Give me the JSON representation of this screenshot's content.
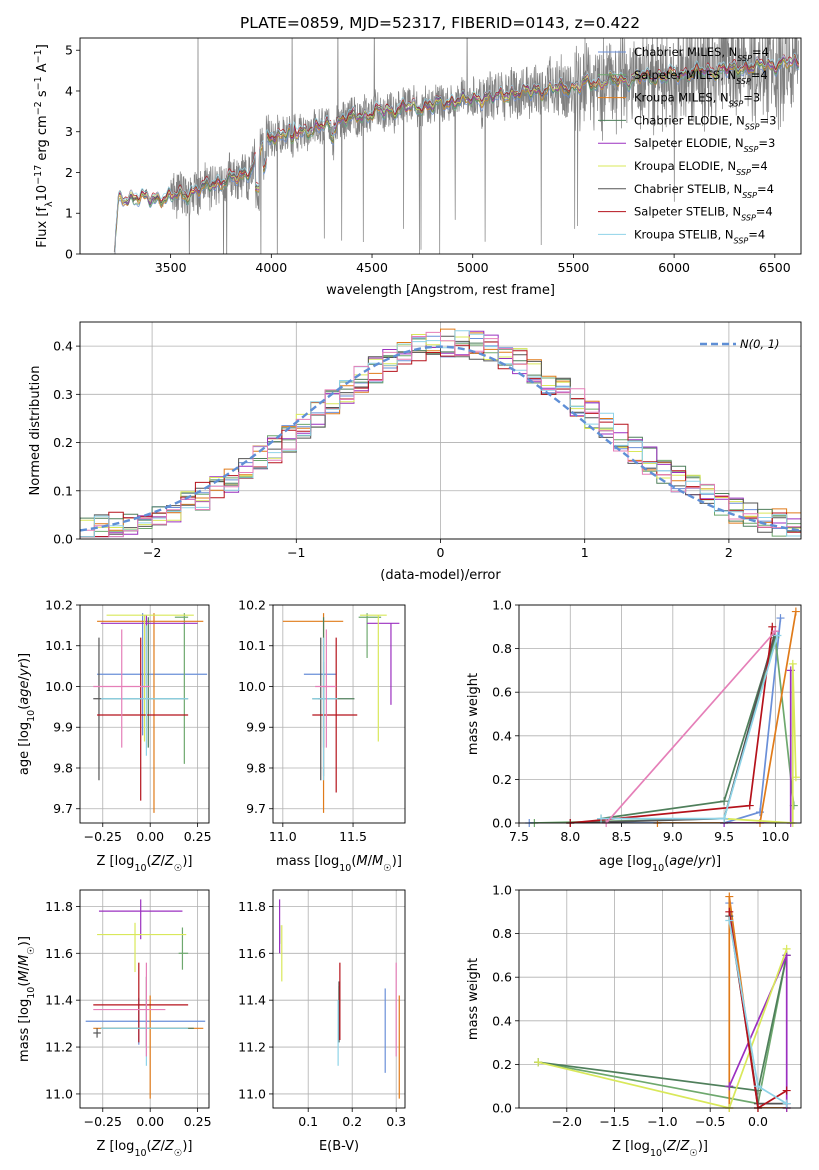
{
  "title": "PLATE=0859, MJD=52317, FIBERID=0143, z=0.422",
  "colors": {
    "Chabrier MILES": "#6a8fd8",
    "Salpeter MILES": "#6ea86e",
    "Kroupa MILES": "#e07b1a",
    "Chabrier ELODIE": "#4f7f5b",
    "Salpeter ELODIE": "#9b30c0",
    "Kroupa ELODIE": "#d9e85a",
    "Chabrier STELIB": "#555555",
    "Salpeter STELIB": "#b5121b",
    "Kroupa STELIB": "#8fd3e8",
    "pink": "#e57fb8",
    "lime": "#c8ee66",
    "data": "#808080"
  },
  "chart_data": [
    {
      "id": "spectrum",
      "type": "line",
      "title": "PLATE=0859, MJD=52317, FIBERID=0143, z=0.422",
      "xlabel": "wavelength [Angstrom, rest frame]",
      "ylabel": "Flux [f_λ 10^-17 erg cm^-2 s^-1 A^-1]",
      "xlim": [
        3050,
        6630
      ],
      "ylim": [
        0,
        5.3
      ],
      "xticks": [
        "3500",
        "4000",
        "4500",
        "5000",
        "5500",
        "6000",
        "6500"
      ],
      "yticks": [
        "0",
        "1",
        "2",
        "3",
        "4",
        "5"
      ],
      "grid": false,
      "legend": "top-right",
      "legend_entries": [
        "Chabrier MILES, N_SSP=4",
        "Salpeter MILES, N_SSP=4",
        "Kroupa MILES, N_SSP=3",
        "Chabrier ELODIE, N_SSP=3",
        "Salpeter ELODIE, N_SSP=3",
        "Kroupa ELODIE, N_SSP=4",
        "Chabrier STELIB, N_SSP=4",
        "Salpeter STELIB, N_SSP=4",
        "Kroupa STELIB, N_SSP=4"
      ],
      "model_continuum": {
        "x": [
          3220,
          3240,
          3300,
          3400,
          3500,
          3600,
          3700,
          3800,
          3850,
          3900,
          3950,
          4000,
          4100,
          4200,
          4300,
          4400,
          4500,
          4600,
          4700,
          4800,
          4900,
          5000,
          5100,
          5200,
          5300,
          5400,
          5500,
          5600,
          5700,
          5800,
          5900,
          6000,
          6100,
          6200,
          6300,
          6400,
          6500,
          6600
        ],
        "y": [
          0,
          1.3,
          1.4,
          1.35,
          1.4,
          1.5,
          1.7,
          1.85,
          1.9,
          2.1,
          2.6,
          2.9,
          3.0,
          3.05,
          3.2,
          3.35,
          3.45,
          3.55,
          3.6,
          3.65,
          3.75,
          3.8,
          3.85,
          3.95,
          4.0,
          4.05,
          4.1,
          4.2,
          4.25,
          4.3,
          4.35,
          4.4,
          4.45,
          4.5,
          4.55,
          4.6,
          4.65,
          4.7
        ]
      }
    },
    {
      "id": "residuals",
      "type": "histogram",
      "xlabel": "(data-model)/error",
      "ylabel": "Normed distribution",
      "xlim": [
        -2.5,
        2.5
      ],
      "ylim": [
        0,
        0.45
      ],
      "xticks": [
        "−2",
        "−1",
        "0",
        "1",
        "2"
      ],
      "yticks": [
        "0.0",
        "0.1",
        "0.2",
        "0.3",
        "0.4"
      ],
      "grid": true,
      "legend": "top-right",
      "legend_entries": [
        "N(0, 1)"
      ],
      "bin_width": 0.1
    },
    {
      "id": "age-Z",
      "type": "errorbar",
      "xlabel": "Z [log10(Z/Z☉)]",
      "ylabel": "age [log10(age/yr)]",
      "xlim": [
        -0.37,
        0.31
      ],
      "ylim": [
        9.665,
        10.2
      ],
      "xticks": [
        "−0.25",
        "0.00",
        "0.25"
      ],
      "yticks": [
        "9.7",
        "9.8",
        "9.9",
        "10.0",
        "10.1",
        "10.2"
      ],
      "grid": true,
      "points": [
        {
          "model": "Chabrier MILES",
          "x": -0.04,
          "xerr": [
            0.24,
            0.34
          ],
          "y": 10.03,
          "yerr": [
            0.15,
            0.15
          ]
        },
        {
          "model": "Salpeter MILES",
          "x": 0.18,
          "xerr": [
            0.05,
            0.02
          ],
          "y": 10.17,
          "yerr": [
            0.36,
            0.01
          ]
        },
        {
          "model": "Kroupa MILES",
          "x": 0.02,
          "xerr": [
            0.3,
            0.26
          ],
          "y": 10.16,
          "yerr": [
            0.47,
            0.02
          ]
        },
        {
          "model": "Chabrier ELODIE",
          "x": -0.01,
          "xerr": [
            0.23,
            0.21
          ],
          "y": 9.97,
          "yerr": [
            0.12,
            0.2
          ]
        },
        {
          "model": "Salpeter ELODIE",
          "x": -0.02,
          "xerr": [
            0.24,
            0.27
          ],
          "y": 10.155,
          "yerr": [
            0.15,
            0.02
          ]
        },
        {
          "model": "Kroupa ELODIE",
          "x": -0.03,
          "xerr": [
            0.2,
            0.26
          ],
          "y": 10.175,
          "yerr": [
            0.31,
            0.0
          ]
        },
        {
          "model": "Chabrier STELIB",
          "x": -0.27,
          "xerr": [
            0.03,
            0.03
          ],
          "y": 9.97,
          "yerr": [
            0.2,
            0.15
          ]
        },
        {
          "model": "Salpeter STELIB",
          "x": -0.05,
          "xerr": [
            0.23,
            0.25
          ],
          "y": 9.93,
          "yerr": [
            0.21,
            0.19
          ]
        },
        {
          "model": "Kroupa STELIB",
          "x": -0.02,
          "xerr": [
            0.24,
            0.22
          ],
          "y": 9.97,
          "yerr": [
            0.14,
            0.18
          ]
        },
        {
          "model": "pink",
          "x": -0.15,
          "xerr": [
            0.15,
            0.15
          ],
          "y": 10.0,
          "yerr": [
            0.15,
            0.14
          ]
        }
      ]
    },
    {
      "id": "age-mass",
      "type": "errorbar",
      "xlabel": "mass [log10(M/M☉)]",
      "ylabel": "",
      "xlim": [
        10.93,
        11.87
      ],
      "ylim": [
        9.665,
        10.2
      ],
      "xticks": [
        "11.0",
        "11.5"
      ],
      "yticks": [
        "9.7",
        "9.8",
        "9.9",
        "10.0",
        "10.1",
        "10.2"
      ],
      "grid": true,
      "points": [
        {
          "model": "Chabrier MILES",
          "x": 11.29,
          "xerr": [
            0.14,
            0.09
          ],
          "y": 10.03,
          "yerr": [
            0.25,
            0.03
          ]
        },
        {
          "model": "Salpeter MILES",
          "x": 11.6,
          "xerr": [
            0.06,
            0.1
          ],
          "y": 10.17,
          "yerr": [
            0.1,
            0.01
          ]
        },
        {
          "model": "Kroupa MILES",
          "x": 11.29,
          "xerr": [
            0.29,
            0.14
          ],
          "y": 10.16,
          "yerr": [
            0.47,
            0.02
          ]
        },
        {
          "model": "Chabrier ELODIE",
          "x": 11.29,
          "xerr": [
            0.08,
            0.22
          ],
          "y": 9.97,
          "yerr": [
            0.12,
            0.2
          ]
        },
        {
          "model": "Salpeter ELODIE",
          "x": 11.77,
          "xerr": [
            0.17,
            0.06
          ],
          "y": 10.155,
          "yerr": [
            0.2,
            0.0
          ]
        },
        {
          "model": "Kroupa ELODIE",
          "x": 11.68,
          "xerr": [
            0.13,
            0.06
          ],
          "y": 10.175,
          "yerr": [
            0.31,
            0.0
          ]
        },
        {
          "model": "Chabrier STELIB",
          "x": 11.27,
          "xerr": [
            0.02,
            0.02
          ],
          "y": 9.97,
          "yerr": [
            0.2,
            0.15
          ]
        },
        {
          "model": "Salpeter STELIB",
          "x": 11.38,
          "xerr": [
            0.17,
            0.15
          ],
          "y": 9.93,
          "yerr": [
            0.19,
            0.19
          ]
        },
        {
          "model": "Kroupa STELIB",
          "x": 11.29,
          "xerr": [
            0.08,
            0.1
          ],
          "y": 9.97,
          "yerr": [
            0.2,
            0.15
          ]
        },
        {
          "model": "pink",
          "x": 11.31,
          "xerr": [
            0.08,
            0.07
          ],
          "y": 10.0,
          "yerr": [
            0.15,
            0.14
          ]
        }
      ]
    },
    {
      "id": "massweight-age",
      "type": "line",
      "xlabel": "age [log10(age/yr)]",
      "ylabel": "mass weight",
      "xlim": [
        7.5,
        10.25
      ],
      "ylim": [
        0,
        1
      ],
      "xticks": [
        "7.5",
        "8.0",
        "8.5",
        "9.0",
        "9.5",
        "10.0"
      ],
      "yticks": [
        "0.0",
        "0.2",
        "0.4",
        "0.6",
        "0.8",
        "1.0"
      ],
      "grid": true,
      "series": [
        {
          "model": "Chabrier MILES",
          "x": [
            7.6,
            9.5,
            9.85,
            10.05
          ],
          "y": [
            0.0,
            0.0,
            0.05,
            0.94
          ]
        },
        {
          "model": "Salpeter MILES",
          "x": [
            7.65,
            9.5,
            10.0,
            10.18
          ],
          "y": [
            0.0,
            0.02,
            0.85,
            0.08
          ]
        },
        {
          "model": "Kroupa MILES",
          "x": [
            8.85,
            9.85,
            10.2
          ],
          "y": [
            0.0,
            0.0,
            0.97
          ]
        },
        {
          "model": "Chabrier ELODIE",
          "x": [
            8.3,
            9.5,
            10.0
          ],
          "y": [
            0.02,
            0.1,
            0.86
          ]
        },
        {
          "model": "Salpeter ELODIE",
          "x": [
            9.5,
            10.15,
            10.15
          ],
          "y": [
            0.0,
            0.0,
            0.7
          ]
        },
        {
          "model": "Kroupa ELODIE",
          "x": [
            9.5,
            10.17,
            10.17,
            10.2
          ],
          "y": [
            0.02,
            0.0,
            0.73,
            0.21
          ]
        },
        {
          "model": "Chabrier STELIB",
          "x": [
            8.0,
            9.5,
            10.0
          ],
          "y": [
            0.0,
            0.02,
            0.88
          ]
        },
        {
          "model": "Salpeter STELIB",
          "x": [
            8.0,
            9.75,
            9.97
          ],
          "y": [
            0.0,
            0.08,
            0.9
          ]
        },
        {
          "model": "Kroupa STELIB",
          "x": [
            8.3,
            9.5,
            10.02
          ],
          "y": [
            0.02,
            0.02,
            0.86
          ]
        },
        {
          "model": "pink",
          "x": [
            8.35,
            10.0
          ],
          "y": [
            0.0,
            0.88
          ]
        }
      ]
    },
    {
      "id": "mass-Z",
      "type": "errorbar",
      "xlabel": "Z [log10(Z/Z☉)]",
      "ylabel": "mass [log10(M/M☉)]",
      "xlim": [
        -0.37,
        0.31
      ],
      "ylim": [
        10.94,
        11.87
      ],
      "xticks": [
        "−0.25",
        "0.00",
        "0.25"
      ],
      "yticks": [
        "11.0",
        "11.2",
        "11.4",
        "11.6",
        "11.8"
      ],
      "grid": true,
      "points": [
        {
          "model": "Chabrier MILES",
          "x": -0.06,
          "xerr": [
            0.28,
            0.35
          ],
          "y": 11.31,
          "yerr": [
            0.1,
            0.1
          ]
        },
        {
          "model": "Salpeter MILES",
          "x": 0.17,
          "xerr": [
            0.02,
            0.03
          ],
          "y": 11.6,
          "yerr": [
            0.07,
            0.11
          ]
        },
        {
          "model": "Kroupa MILES",
          "x": 0.0,
          "xerr": [
            0.3,
            0.28
          ],
          "y": 11.28,
          "yerr": [
            0.3,
            0.14
          ]
        },
        {
          "model": "Chabrier ELODIE",
          "x": -0.02,
          "xerr": [
            0.24,
            0.25
          ],
          "y": 11.28,
          "yerr": [
            0.08,
            0.22
          ]
        },
        {
          "model": "Salpeter ELODIE",
          "x": -0.05,
          "xerr": [
            0.22,
            0.22
          ],
          "y": 11.78,
          "yerr": [
            0.12,
            0.05
          ]
        },
        {
          "model": "Kroupa ELODIE",
          "x": -0.08,
          "xerr": [
            0.2,
            0.27
          ],
          "y": 11.68,
          "yerr": [
            0.16,
            0.05
          ]
        },
        {
          "model": "Chabrier STELIB",
          "x": -0.28,
          "xerr": [
            0.02,
            0.02
          ],
          "y": 11.26,
          "yerr": [
            0.02,
            0.02
          ]
        },
        {
          "model": "Salpeter STELIB",
          "x": -0.06,
          "xerr": [
            0.24,
            0.26
          ],
          "y": 11.38,
          "yerr": [
            0.16,
            0.18
          ]
        },
        {
          "model": "Kroupa STELIB",
          "x": -0.02,
          "xerr": [
            0.24,
            0.22
          ],
          "y": 11.28,
          "yerr": [
            0.16,
            0.12
          ]
        },
        {
          "model": "pink",
          "x": -0.02,
          "xerr": [
            0.28,
            0.1
          ],
          "y": 11.36,
          "yerr": [
            0.2,
            0.2
          ]
        }
      ]
    },
    {
      "id": "mass-EBV",
      "type": "errorbar",
      "xlabel": "E(B-V)",
      "ylabel": "",
      "xlim": [
        0.02,
        0.32
      ],
      "ylim": [
        10.94,
        11.87
      ],
      "xticks": [
        "0.1",
        "0.2",
        "0.3"
      ],
      "yticks": [
        "11.0",
        "11.2",
        "11.4",
        "11.6",
        "11.8"
      ],
      "grid": true,
      "points": [
        {
          "model": "Chabrier MILES",
          "x": 0.275,
          "y": 11.31,
          "yerr": [
            0.22,
            0.14
          ]
        },
        {
          "model": "Salpeter MILES",
          "x": 0.17,
          "y": 11.34,
          "yerr": [
            0.12,
            0.12
          ]
        },
        {
          "model": "Kroupa MILES",
          "x": 0.307,
          "y": 11.28,
          "yerr": [
            0.3,
            0.14
          ]
        },
        {
          "model": "Chabrier ELODIE",
          "x": 0.035,
          "y": 11.68,
          "yerr": [
            0.04,
            0.04
          ]
        },
        {
          "model": "Salpeter ELODIE",
          "x": 0.035,
          "y": 11.7,
          "yerr": [
            0.1,
            0.13
          ]
        },
        {
          "model": "Kroupa ELODIE",
          "x": 0.04,
          "y": 11.6,
          "yerr": [
            0.12,
            0.12
          ]
        },
        {
          "model": "Chabrier STELIB",
          "x": 0.17,
          "y": 11.38,
          "yerr": [
            0.16,
            0.1
          ]
        },
        {
          "model": "Salpeter STELIB",
          "x": 0.172,
          "y": 11.38,
          "yerr": [
            0.15,
            0.18
          ]
        },
        {
          "model": "Kroupa STELIB",
          "x": 0.168,
          "y": 11.28,
          "yerr": [
            0.16,
            0.12
          ]
        },
        {
          "model": "pink",
          "x": 0.3,
          "y": 11.36,
          "yerr": [
            0.2,
            0.2
          ]
        }
      ]
    },
    {
      "id": "massweight-Z",
      "type": "line",
      "xlabel": "Z [log10(Z/Z☉)]",
      "ylabel": "mass weight",
      "xlim": [
        -2.5,
        0.45
      ],
      "ylim": [
        0,
        1
      ],
      "xticks": [
        "−2.0",
        "−1.5",
        "−1.0",
        "−0.5",
        "0.0"
      ],
      "yticks": [
        "0.0",
        "0.2",
        "0.4",
        "0.6",
        "0.8",
        "1.0"
      ],
      "grid": true,
      "series": [
        {
          "model": "Chabrier MILES",
          "x": [
            -0.3,
            0.0,
            0.3
          ],
          "y": [
            0.94,
            0.0,
            0.0
          ]
        },
        {
          "model": "Salpeter MILES",
          "x": [
            -2.3,
            0.0,
            0.3
          ],
          "y": [
            0.21,
            0.02,
            0.7
          ]
        },
        {
          "model": "Kroupa MILES",
          "x": [
            -0.3,
            -0.3,
            0.0,
            0.3
          ],
          "y": [
            0.0,
            0.97,
            0.0,
            0.0
          ]
        },
        {
          "model": "Chabrier ELODIE",
          "x": [
            -2.3,
            0.0,
            0.3
          ],
          "y": [
            0.21,
            0.08,
            0.7
          ]
        },
        {
          "model": "Salpeter ELODIE",
          "x": [
            -0.3,
            0.3,
            0.3
          ],
          "y": [
            0.1,
            0.7,
            0.0
          ]
        },
        {
          "model": "Kroupa ELODIE",
          "x": [
            -2.3,
            -0.3,
            0.3
          ],
          "y": [
            0.21,
            0.0,
            0.73
          ]
        },
        {
          "model": "Chabrier STELIB",
          "x": [
            -0.3,
            0.0,
            0.3
          ],
          "y": [
            0.88,
            0.02,
            0.02
          ]
        },
        {
          "model": "Salpeter STELIB",
          "x": [
            -0.3,
            0.0,
            0.3
          ],
          "y": [
            0.9,
            0.0,
            0.08
          ]
        },
        {
          "model": "Kroupa STELIB",
          "x": [
            -0.3,
            0.0,
            0.3
          ],
          "y": [
            0.86,
            0.1,
            0.02
          ]
        }
      ]
    }
  ]
}
